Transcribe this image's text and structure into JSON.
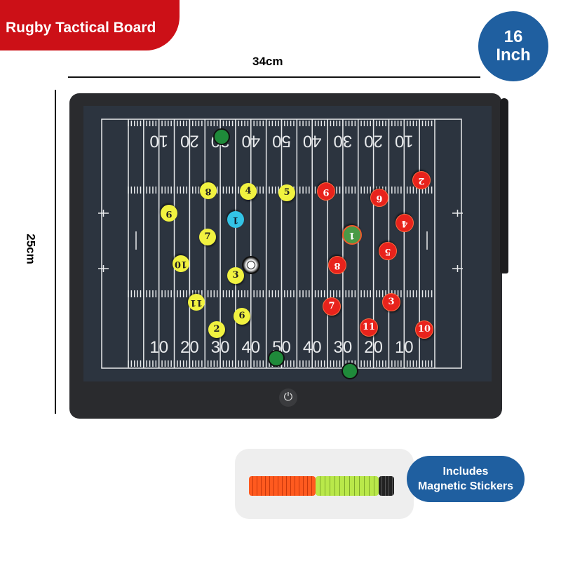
{
  "banner": {
    "title": "Rugby Tactical Board"
  },
  "size_badge": {
    "line1": "16",
    "line2": "Inch"
  },
  "dimensions": {
    "width": "34cm",
    "height": "25cm"
  },
  "field": {
    "top_numbers": [
      "10",
      "20",
      "30",
      "40",
      "50",
      "40",
      "30",
      "20",
      "10"
    ],
    "bottom_numbers": [
      "10",
      "20",
      "30",
      "40",
      "50",
      "40",
      "30",
      "20",
      "10"
    ]
  },
  "markers": {
    "yellow": [
      "8",
      "4",
      "5",
      "9",
      "7",
      "10",
      "3",
      "11",
      "6",
      "2"
    ],
    "blue": [
      "1"
    ],
    "red": [
      "9",
      "2",
      "6",
      "4",
      "5",
      "8",
      "7",
      "3",
      "11",
      "10"
    ],
    "green": [
      "1"
    ]
  },
  "icons": {
    "power": "power-icon",
    "ball": "soccer-ball-icon"
  },
  "accessory": {
    "line1": "Includes",
    "line2": "Magnetic Stickers"
  },
  "colors": {
    "banner": "#cc1017",
    "badge": "#1f5fa0",
    "board": "#2a2b2e",
    "screen": "#2c343f",
    "yellow_team": "#f1f240",
    "red_team": "#e8231c"
  }
}
